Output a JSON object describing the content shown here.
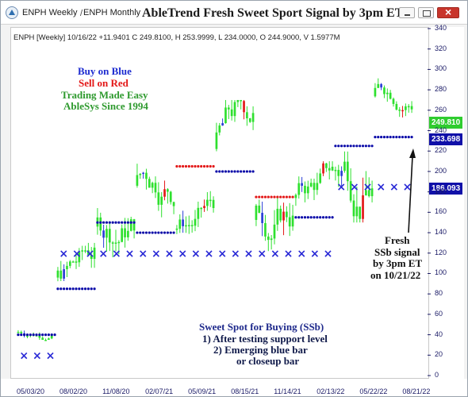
{
  "window": {
    "tab_1": "ENPH Weekly",
    "tab_separator": "/",
    "tab_2": "ENPH Monthly",
    "title": "AbleTrend Fresh Sweet Sport Signal by 3pm ET"
  },
  "chart_info": "ENPH [Weekly] 10/16/22 +11.9401 C 249.8100, H 253.9999, L 234.0000, O 244.9000, V 1.5977M",
  "promo": {
    "line_1": "Buy on Blue",
    "line_2": "Sell on Red",
    "line_3": "Trading Made Easy",
    "line_4": "AbleSys Since 1994"
  },
  "note": {
    "line_1": "Sweet Spot for Buying (SSb)",
    "line_2": "1) After testing support level",
    "line_3": "2) Emerging blue bar",
    "line_4": "or closeup bar"
  },
  "annotation": {
    "line_1": "Fresh",
    "line_2": "SSb signal",
    "line_3": "by 3pm ET",
    "line_4": "on 10/21/22"
  },
  "price_tags": {
    "last": "249.810",
    "stop_1": "233.698",
    "stop_2": "186.093"
  },
  "colors": {
    "up_bar": "#2ee02e",
    "buy_bar": "#2a3fd6",
    "sell_bar": "#e31818",
    "stop_dot_blue": "#0a0aa8",
    "stop_dot_red": "#e31818",
    "x_marker": "#2a2ad6"
  },
  "chart_data": {
    "type": "candlestick",
    "symbol": "ENPH",
    "interval": "Weekly",
    "y_ticks": [
      0,
      20,
      40,
      60,
      80,
      100,
      120,
      140,
      160,
      180,
      200,
      220,
      240,
      260,
      280,
      300,
      320,
      340
    ],
    "x_ticks": [
      "05/03/20",
      "08/02/20",
      "11/08/20",
      "02/07/21",
      "05/09/21",
      "08/15/21",
      "11/14/21",
      "02/13/22",
      "05/22/22",
      "08/21/22"
    ],
    "ylim": [
      0,
      340
    ],
    "last_close": 249.81,
    "blue_stop_levels": [
      233.698,
      186.093
    ],
    "segments": [
      {
        "dates": "05/03/20 - 08/02/20",
        "range": [
          35,
          60
        ],
        "stop": 40,
        "x_marker_level": 20
      },
      {
        "dates": "08/02/20 - 11/08/20",
        "range": [
          45,
          130
        ],
        "stop": 85,
        "x_marker_level": 120
      },
      {
        "dates": "11/08/20 - 02/07/21",
        "range": [
          110,
          230
        ],
        "stop": 150,
        "x_marker_level": 120
      },
      {
        "dates": "02/07/21 - 05/09/21",
        "range": [
          120,
          230
        ],
        "stop": 140,
        "x_marker_level": 120
      },
      {
        "dates": "05/09/21 - 08/15/21",
        "range": [
          120,
          200
        ],
        "stop": 205,
        "x_marker_level": 120
      },
      {
        "dates": "08/15/21 - 11/14/21",
        "range": [
          150,
          270
        ],
        "stop": 200,
        "x_marker_level": 120
      },
      {
        "dates": "11/14/21 - 02/13/22",
        "range": [
          115,
          240
        ],
        "stop": 175,
        "x_marker_level": 120
      },
      {
        "dates": "02/13/22 - 05/22/22",
        "range": [
          120,
          210
        ],
        "stop": 155,
        "x_marker_level": 120
      },
      {
        "dates": "05/22/22 - 08/21/22",
        "range": [
          150,
          320
        ],
        "stop": 225,
        "x_marker_level": 185
      },
      {
        "dates": "08/21/22 - 10/16/22",
        "range": [
          234,
          300
        ],
        "stop": 233.698,
        "x_marker_level": 185
      }
    ]
  }
}
